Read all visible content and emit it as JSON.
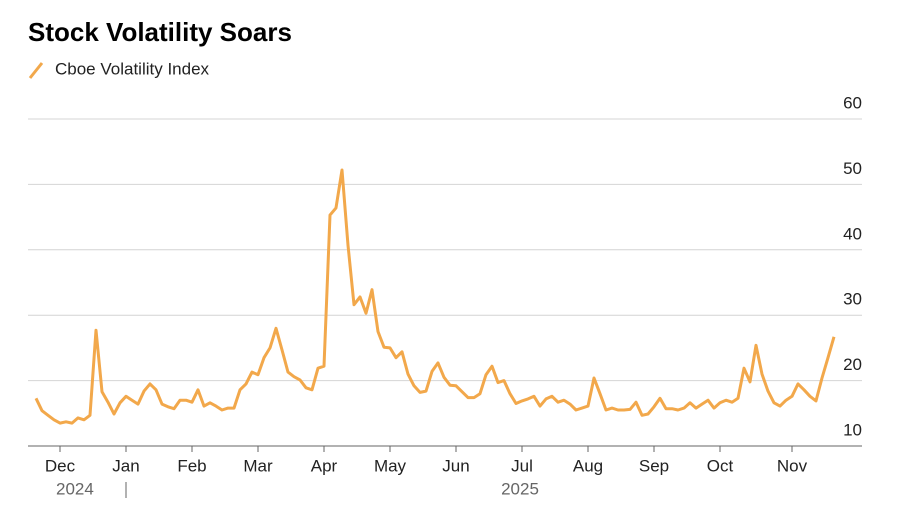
{
  "chart_data": {
    "type": "line",
    "title": "Stock Volatility Soars",
    "categories": [
      null,
      null,
      null,
      null,
      "Dec",
      null,
      null,
      null,
      null,
      null,
      null,
      null,
      null,
      null,
      null,
      "Jan",
      null,
      null,
      null,
      null,
      null,
      null,
      null,
      null,
      null,
      null,
      "Feb",
      null,
      null,
      null,
      null,
      null,
      null,
      null,
      null,
      null,
      null,
      "Mar",
      null,
      null,
      null,
      null,
      null,
      null,
      null,
      null,
      null,
      null,
      "Apr",
      null,
      null,
      null,
      null,
      null,
      null,
      null,
      null,
      null,
      null,
      "May",
      null,
      null,
      null,
      null,
      null,
      null,
      null,
      null,
      null,
      null,
      "Jun",
      null,
      null,
      null,
      null,
      null,
      null,
      null,
      null,
      null,
      null,
      "Jul",
      null,
      null,
      null,
      null,
      null,
      null,
      null,
      null,
      null,
      null,
      "Aug",
      null,
      null,
      null,
      null,
      null,
      null,
      null,
      null,
      null,
      null,
      "Sep",
      null,
      null,
      null,
      null,
      null,
      null,
      null,
      null,
      null,
      null,
      "Oct",
      null,
      null,
      null,
      null,
      null,
      null,
      null,
      null,
      null,
      null,
      null,
      "Nov",
      null,
      null,
      null,
      null,
      null,
      null,
      null
    ],
    "x_group_labels": [
      "2024",
      "2025"
    ],
    "series": [
      {
        "name": "Cboe Volatility Index",
        "color": "#f2a84b",
        "values": [
          17.3,
          15.4,
          14.7,
          14.0,
          13.5,
          13.7,
          13.5,
          14.3,
          14.0,
          14.7,
          27.7,
          18.3,
          16.7,
          14.9,
          16.6,
          17.6,
          17.0,
          16.4,
          18.4,
          19.5,
          18.6,
          16.4,
          16.0,
          15.7,
          17.0,
          17.0,
          16.7,
          18.6,
          16.1,
          16.6,
          16.1,
          15.5,
          15.8,
          15.8,
          18.6,
          19.5,
          21.3,
          20.9,
          23.5,
          25.0,
          28.0,
          24.7,
          21.3,
          20.6,
          20.1,
          18.9,
          18.6,
          21.9,
          22.2,
          45.3,
          46.4,
          52.2,
          40.7,
          31.6,
          32.8,
          30.3,
          33.9,
          27.5,
          25.1,
          25.0,
          23.5,
          24.4,
          21.0,
          19.2,
          18.2,
          18.4,
          21.4,
          22.7,
          20.5,
          19.3,
          19.2,
          18.3,
          17.4,
          17.4,
          18.0,
          20.9,
          22.2,
          19.7,
          20.0,
          18.0,
          16.5,
          16.9,
          17.2,
          17.6,
          16.1,
          17.2,
          17.6,
          16.7,
          17.0,
          16.4,
          15.5,
          15.8,
          16.1,
          20.4,
          18.0,
          15.5,
          15.8,
          15.5,
          15.5,
          15.6,
          16.7,
          14.7,
          14.9,
          16.0,
          17.3,
          15.7,
          15.7,
          15.5,
          15.8,
          16.6,
          15.8,
          16.4,
          17.0,
          15.8,
          16.6,
          17.0,
          16.7,
          17.3,
          21.9,
          19.8,
          25.4,
          21.0,
          18.4,
          16.6,
          16.1,
          17.0,
          17.6,
          19.5,
          18.6,
          17.6,
          16.9,
          20.4,
          23.5,
          26.7
        ]
      }
    ],
    "ylim": [
      10,
      60
    ],
    "yticks": [
      10,
      20,
      30,
      40,
      50,
      60
    ],
    "grid": true
  }
}
